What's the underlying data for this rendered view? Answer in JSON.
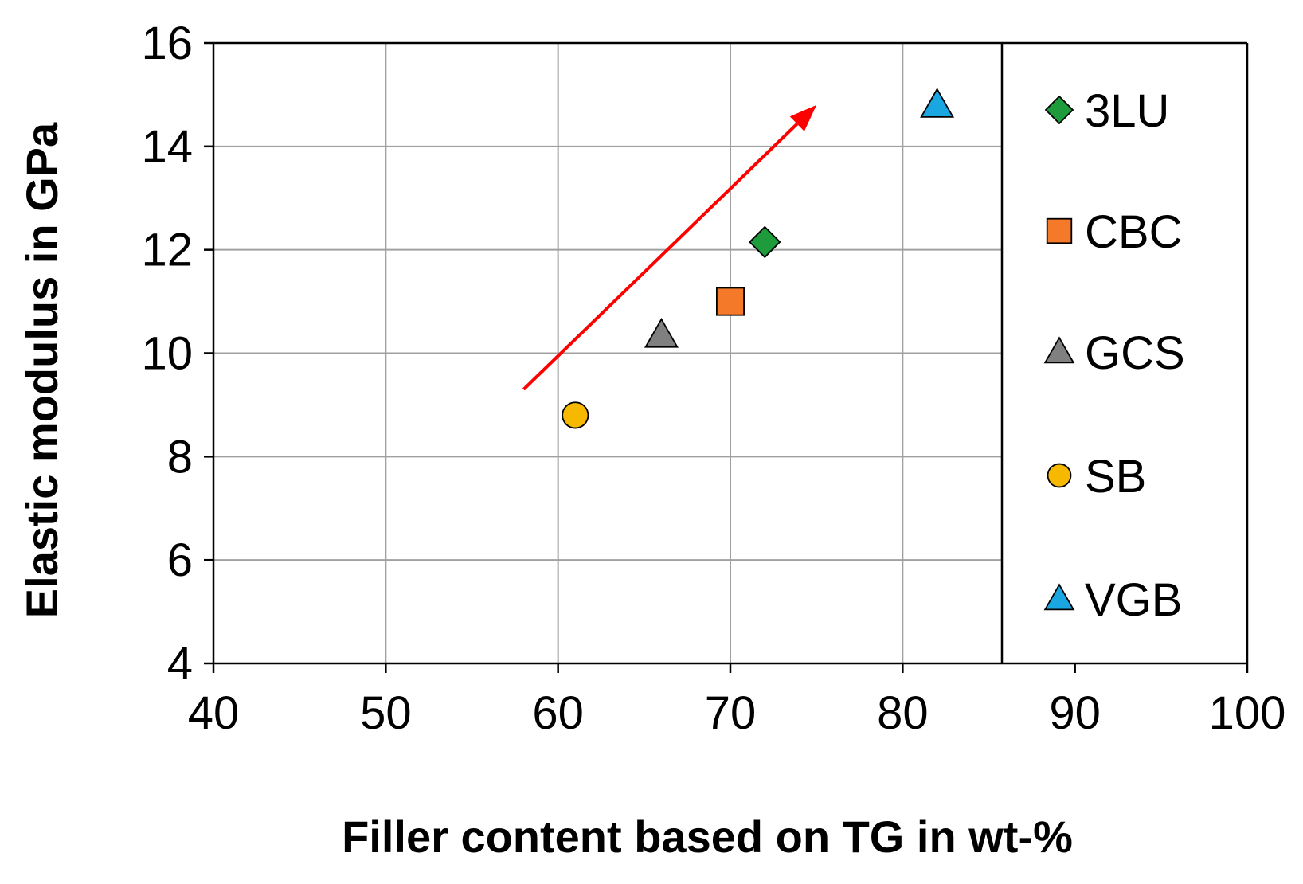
{
  "chart_data": {
    "type": "scatter",
    "xlabel": "Filler content based on TG in wt-%",
    "ylabel": "Elastic modulus in GPa",
    "xlim": [
      40,
      100
    ],
    "ylim": [
      4,
      16
    ],
    "xticks": [
      "40",
      "50",
      "60",
      "70",
      "80",
      "90",
      "100"
    ],
    "yticks": [
      "4",
      "6",
      "8",
      "10",
      "12",
      "14",
      "16"
    ],
    "grid": true,
    "legend_position": "right",
    "series": [
      {
        "name": "3LU",
        "marker": "diamond",
        "color": "#1e9b3a",
        "x": 72,
        "y": 12.15
      },
      {
        "name": "CBC",
        "marker": "square",
        "color": "#f47a2a",
        "x": 70,
        "y": 11.0
      },
      {
        "name": "GCS",
        "marker": "triangle",
        "color": "#808080",
        "x": 66,
        "y": 10.35
      },
      {
        "name": "SB",
        "marker": "circle",
        "color": "#f7b800",
        "x": 61,
        "y": 8.8
      },
      {
        "name": "VGB",
        "marker": "triangle",
        "color": "#1aa6e0",
        "x": 82,
        "y": 14.8
      }
    ],
    "annotations": [
      {
        "type": "arrow",
        "color": "#ff0000",
        "from": [
          58,
          9.3
        ],
        "to": [
          75,
          14.8
        ]
      }
    ]
  }
}
